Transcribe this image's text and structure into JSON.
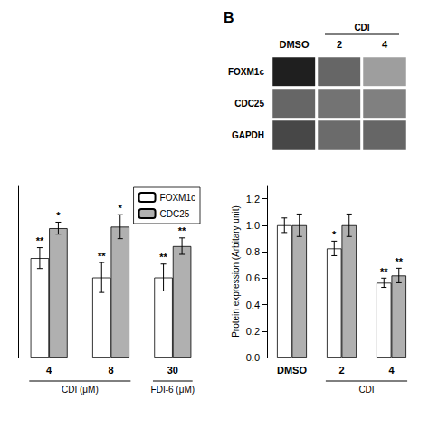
{
  "chart_data": [
    {
      "type": "heatmap",
      "title": "B",
      "categories": [
        "DMSO",
        "2",
        "4"
      ],
      "rows": [
        "FOXM1c",
        "CDC25",
        "GAPDH"
      ],
      "values": [
        [
          0.88,
          0.6,
          0.38
        ],
        [
          0.6,
          0.55,
          0.5
        ],
        [
          0.72,
          0.58,
          0.6
        ]
      ],
      "zlim": [
        0,
        1
      ],
      "annotations": [
        {
          "text": "CDI",
          "categories": [
            "2",
            "4"
          ]
        }
      ]
    },
    {
      "type": "bar",
      "categories": [
        "4",
        "8",
        "30"
      ],
      "series": [
        {
          "name": "FOXM1c",
          "color": "white",
          "values": [
            0.665,
            0.535,
            0.535
          ],
          "errors": [
            0.07,
            0.1,
            0.09
          ],
          "sig_labels": [
            "**",
            "**",
            "**"
          ]
        },
        {
          "name": "CDC25",
          "color": "#b0b0b0",
          "values": [
            0.865,
            0.875,
            0.745
          ],
          "errors": [
            0.04,
            0.08,
            0.055
          ],
          "sig_labels": [
            "*",
            "*",
            "**"
          ]
        }
      ],
      "ylim": [
        0.0,
        1.15
      ],
      "tick_labels": "x",
      "grid": false,
      "legend": "upper right",
      "annotations": [
        {
          "text": "CDI (μM)",
          "categories": [
            "4",
            "8"
          ]
        },
        {
          "text": "FDI-6 (μM)",
          "categories": [
            "30"
          ]
        }
      ]
    },
    {
      "type": "bar",
      "categories": [
        "DMSO",
        "2",
        "4"
      ],
      "series": [
        {
          "name": "FOXM1c",
          "color": "white",
          "values": [
            1.0,
            0.825,
            0.565
          ],
          "errors": [
            0.055,
            0.055,
            0.035
          ],
          "sig_labels": [
            "",
            "*",
            "**"
          ]
        },
        {
          "name": "CDC25",
          "color": "#b0b0b0",
          "values": [
            1.0,
            1.0,
            0.62
          ],
          "errors": [
            0.085,
            0.085,
            0.055
          ],
          "sig_labels": [
            "",
            "",
            "**"
          ]
        }
      ],
      "ylabel": "Protein expression (Arbitary unit)",
      "ylim": [
        0.0,
        1.3
      ],
      "yticks": [
        {
          "value": 0,
          "label": "0.0"
        },
        {
          "value": 0.2,
          "label": "0.2"
        },
        {
          "value": 0.4,
          "label": "0.4"
        },
        {
          "value": 0.6,
          "label": "0.6"
        },
        {
          "value": 0.8,
          "label": "0.8"
        },
        {
          "value": 1,
          "label": "1.0"
        },
        {
          "value": 1.2,
          "label": "1.2"
        }
      ],
      "grid": false,
      "annotations": [
        {
          "text": "CDI",
          "categories": [
            "2",
            "4"
          ]
        }
      ]
    }
  ]
}
